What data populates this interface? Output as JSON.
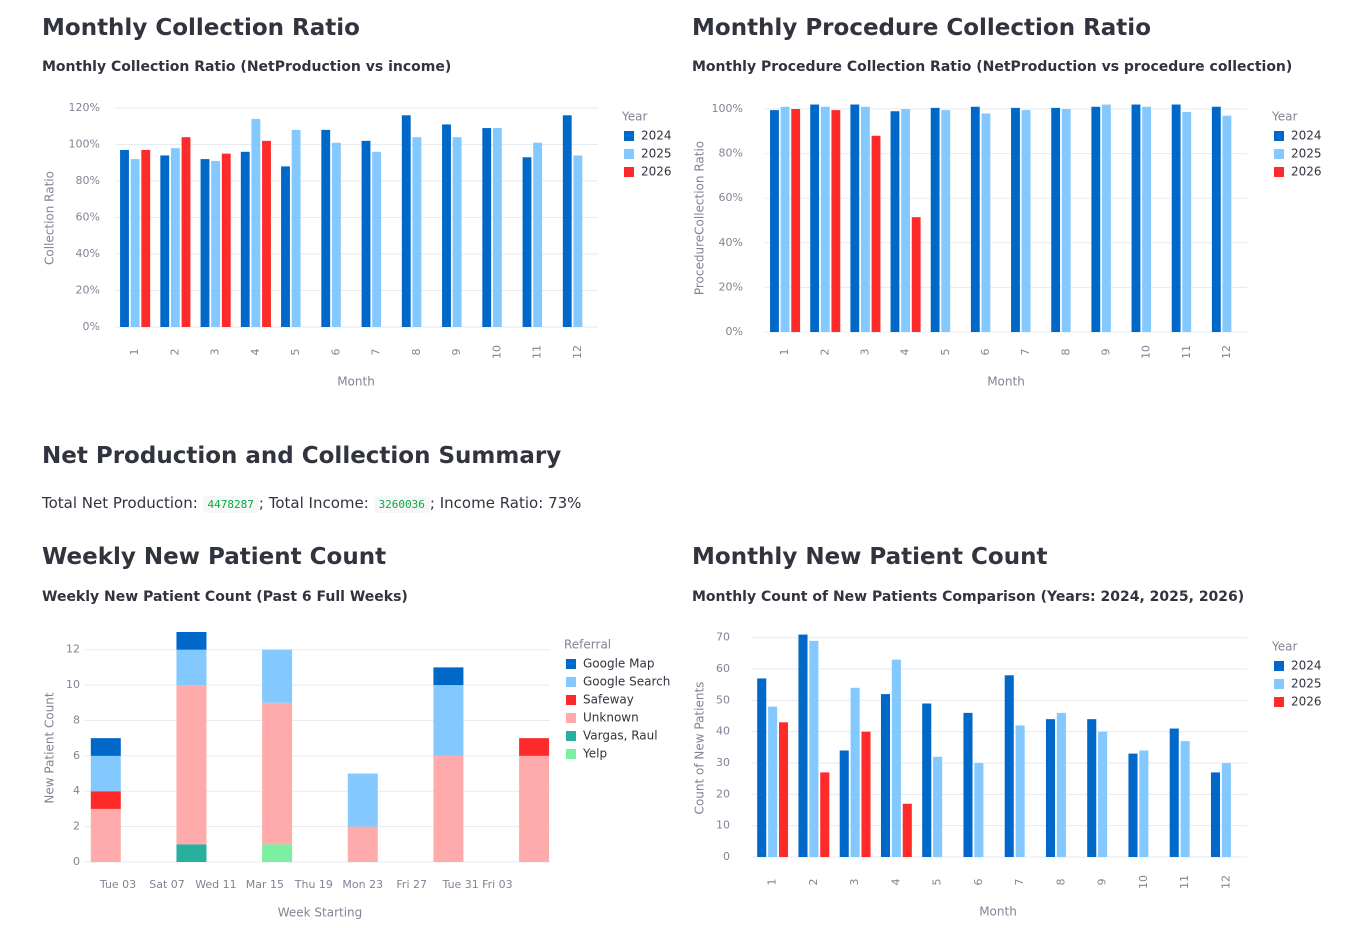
{
  "chart_data": [
    {
      "type": "bar",
      "heading": "Monthly Collection Ratio",
      "title": "Monthly Collection Ratio (NetProduction vs income)",
      "x_label": "Month",
      "y_label": "Collection Ratio",
      "legend_title": "Year",
      "categories": [
        "1",
        "2",
        "3",
        "4",
        "5",
        "6",
        "7",
        "8",
        "9",
        "10",
        "11",
        "12"
      ],
      "series": [
        {
          "name": "2024",
          "color": "#0068c9",
          "values": [
            97,
            94,
            92,
            96,
            88,
            108,
            102,
            116,
            111,
            109,
            93,
            116
          ]
        },
        {
          "name": "2025",
          "color": "#83c9ff",
          "values": [
            92,
            98,
            91,
            114,
            108,
            101,
            96,
            104,
            104,
            109,
            101,
            94
          ]
        },
        {
          "name": "2026",
          "color": "#ff2b2b",
          "values": [
            97,
            104,
            95,
            102,
            null,
            null,
            null,
            null,
            null,
            null,
            null,
            null
          ]
        }
      ],
      "ylim": [
        0,
        120
      ],
      "yticks": [
        {
          "value": 0,
          "label": "0%"
        },
        {
          "value": 20,
          "label": "20%"
        },
        {
          "value": 40,
          "label": "40%"
        },
        {
          "value": 60,
          "label": "60%"
        },
        {
          "value": 80,
          "label": "80%"
        },
        {
          "value": 100,
          "label": "100%"
        },
        {
          "value": 120,
          "label": "120%"
        }
      ],
      "grid": true
    },
    {
      "type": "bar",
      "heading": "Monthly Procedure Collection Ratio",
      "title": "Monthly Procedure Collection Ratio (NetProduction vs procedure collection)",
      "x_label": "Month",
      "y_label": "ProcedureCollection Ratio",
      "legend_title": "Year",
      "categories": [
        "1",
        "2",
        "3",
        "4",
        "5",
        "6",
        "7",
        "8",
        "9",
        "10",
        "11",
        "12"
      ],
      "series": [
        {
          "name": "2024",
          "color": "#0068c9",
          "values": [
            99.5,
            102,
            102,
            99,
            100.5,
            101,
            100.5,
            100.5,
            101,
            102,
            102,
            101
          ]
        },
        {
          "name": "2025",
          "color": "#83c9ff",
          "values": [
            101,
            101,
            101,
            100,
            99.5,
            98,
            99.5,
            100,
            102,
            101,
            98.7,
            97
          ]
        },
        {
          "name": "2026",
          "color": "#ff2b2b",
          "values": [
            100,
            99.5,
            88,
            51.5,
            null,
            null,
            null,
            null,
            null,
            null,
            null,
            null
          ]
        }
      ],
      "ylim": [
        0,
        103
      ],
      "yticks": [
        {
          "value": 0,
          "label": "0%"
        },
        {
          "value": 20,
          "label": "20%"
        },
        {
          "value": 40,
          "label": "40%"
        },
        {
          "value": 60,
          "label": "60%"
        },
        {
          "value": 80,
          "label": "80%"
        },
        {
          "value": 100,
          "label": "100%"
        }
      ],
      "grid": true
    },
    {
      "type": "stacked-bar",
      "heading": "Weekly New Patient Count",
      "title": "Weekly New Patient Count (Past 6 Full Weeks)",
      "x_label": "Week Starting",
      "y_label": "New Patient Count",
      "legend_title": "Referral",
      "x": [
        2,
        9,
        16,
        23,
        30,
        37
      ],
      "series": [
        {
          "name": "Google Map",
          "color": "#0068c9",
          "values": [
            1,
            1,
            null,
            null,
            1,
            null
          ]
        },
        {
          "name": "Google Search",
          "color": "#83c9ff",
          "values": [
            2,
            2,
            3,
            3,
            4,
            null
          ]
        },
        {
          "name": "Safeway",
          "color": "#ff2b2b",
          "values": [
            1,
            null,
            null,
            null,
            null,
            1
          ]
        },
        {
          "name": "Unknown",
          "color": "#ffabab",
          "values": [
            3,
            9,
            8,
            2,
            6,
            6
          ]
        },
        {
          "name": "Vargas, Raul",
          "color": "#29b09d",
          "values": [
            null,
            1,
            null,
            null,
            null,
            null
          ]
        },
        {
          "name": "Yelp",
          "color": "#7defa1",
          "values": [
            null,
            null,
            1,
            null,
            null,
            null
          ]
        }
      ],
      "xlim": [
        0.3,
        38.3
      ],
      "xticks": [
        {
          "value": 3,
          "label": "Tue 03"
        },
        {
          "value": 7,
          "label": "Sat 07"
        },
        {
          "value": 11,
          "label": "Wed 11"
        },
        {
          "value": 15,
          "label": "Mar 15"
        },
        {
          "value": 19,
          "label": "Thu 19"
        },
        {
          "value": 23,
          "label": "Mon 23"
        },
        {
          "value": 27,
          "label": "Fri 27"
        },
        {
          "value": 31,
          "label": "Tue 31"
        },
        {
          "value": 34,
          "label": "Fri 03"
        }
      ],
      "ylim": [
        0,
        13
      ],
      "yticks": [
        0,
        2,
        4,
        6,
        8,
        10,
        12
      ],
      "grid": true
    },
    {
      "type": "bar",
      "heading": "Monthly New Patient Count",
      "title": "Monthly Count of New Patients Comparison (Years: 2024, 2025, 2026)",
      "x_label": "Month",
      "y_label": "Count of New Patients",
      "legend_title": "Year",
      "categories": [
        "1",
        "2",
        "3",
        "4",
        "5",
        "6",
        "7",
        "8",
        "9",
        "10",
        "11",
        "12"
      ],
      "series": [
        {
          "name": "2024",
          "color": "#0068c9",
          "values": [
            57,
            71,
            34,
            52,
            49,
            46,
            58,
            44,
            44,
            33,
            41,
            27
          ]
        },
        {
          "name": "2025",
          "color": "#83c9ff",
          "values": [
            48,
            69,
            54,
            63,
            32,
            30,
            42,
            46,
            40,
            34,
            37,
            30
          ]
        },
        {
          "name": "2026",
          "color": "#ff2b2b",
          "values": [
            43,
            27,
            40,
            17,
            null,
            null,
            null,
            null,
            null,
            null,
            null,
            null
          ]
        }
      ],
      "ylim": [
        0,
        71.5
      ],
      "yticks": [
        0,
        10,
        20,
        30,
        40,
        50,
        60,
        70
      ],
      "grid": true
    }
  ],
  "summary": {
    "heading": "Net Production and Collection Summary",
    "net_production_label": "Total Net Production:",
    "net_production": 4478287,
    "income_label": "; Total Income:",
    "income": 3260036,
    "ratio_label": "; Income Ratio:",
    "income_ratio": "73%"
  }
}
